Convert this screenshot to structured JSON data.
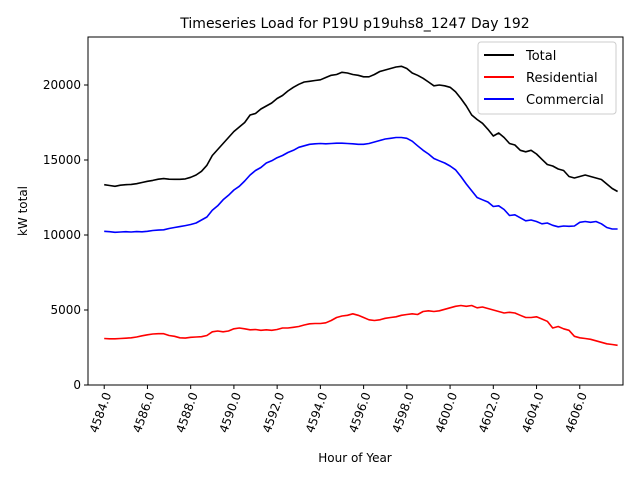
{
  "chart_data": {
    "type": "line",
    "title": "Timeseries Load for P19U p19uhs8_1247  Day 192",
    "xlabel": "Hour of Year",
    "ylabel": "kW total",
    "xlim": [
      4583.25,
      4608.0
    ],
    "ylim": [
      0,
      23200
    ],
    "x_ticks": [
      4584,
      4586,
      4588,
      4590,
      4592,
      4594,
      4596,
      4598,
      4600,
      4602,
      4604,
      4606
    ],
    "x_tick_labels": [
      "4584.0",
      "4586.0",
      "4588.0",
      "4590.0",
      "4592.0",
      "4594.0",
      "4596.0",
      "4598.0",
      "4600.0",
      "4602.0",
      "4604.0",
      "4606.0"
    ],
    "y_ticks": [
      0,
      5000,
      10000,
      15000,
      20000
    ],
    "y_tick_labels": [
      "0",
      "5000",
      "10000",
      "15000",
      "20000"
    ],
    "grid": false,
    "legend_position": "top-right",
    "x": [
      4584.0,
      4584.25,
      4584.5,
      4584.75,
      4585.0,
      4585.25,
      4585.5,
      4585.75,
      4586.0,
      4586.25,
      4586.5,
      4586.75,
      4587.0,
      4587.25,
      4587.5,
      4587.75,
      4588.0,
      4588.25,
      4588.5,
      4588.75,
      4589.0,
      4589.25,
      4589.5,
      4589.75,
      4590.0,
      4590.25,
      4590.5,
      4590.75,
      4591.0,
      4591.25,
      4591.5,
      4591.75,
      4592.0,
      4592.25,
      4592.5,
      4592.75,
      4593.0,
      4593.25,
      4593.5,
      4593.75,
      4594.0,
      4594.25,
      4594.5,
      4594.75,
      4595.0,
      4595.25,
      4595.5,
      4595.75,
      4596.0,
      4596.25,
      4596.5,
      4596.75,
      4597.0,
      4597.25,
      4597.5,
      4597.75,
      4598.0,
      4598.25,
      4598.5,
      4598.75,
      4599.0,
      4599.25,
      4599.5,
      4599.75,
      4600.0,
      4600.25,
      4600.5,
      4600.75,
      4601.0,
      4601.25,
      4601.5,
      4601.75,
      4602.0,
      4602.25,
      4602.5,
      4602.75,
      4603.0,
      4603.25,
      4603.5,
      4603.75,
      4604.0,
      4604.25,
      4604.5,
      4604.75,
      4605.0,
      4605.25,
      4605.5,
      4605.75,
      4606.0,
      4606.25,
      4606.5,
      4606.75,
      4607.0,
      4607.25,
      4607.5,
      4607.75
    ],
    "series": [
      {
        "name": "Total",
        "color": "#000000",
        "values": [
          13350,
          13300,
          13250,
          13320,
          13350,
          13370,
          13420,
          13500,
          13580,
          13640,
          13720,
          13760,
          13720,
          13710,
          13710,
          13740,
          13850,
          14000,
          14250,
          14650,
          15300,
          15700,
          16100,
          16500,
          16900,
          17200,
          17500,
          18000,
          18100,
          18400,
          18600,
          18800,
          19100,
          19300,
          19600,
          19850,
          20050,
          20200,
          20250,
          20300,
          20350,
          20500,
          20650,
          20700,
          20850,
          20800,
          20700,
          20650,
          20550,
          20550,
          20700,
          20900,
          21000,
          21100,
          21200,
          21250,
          21100,
          20800,
          20650,
          20450,
          20200,
          19950,
          20000,
          19950,
          19850,
          19550,
          19100,
          18600,
          18000,
          17700,
          17450,
          17050,
          16600,
          16800,
          16500,
          16100,
          16000,
          15650,
          15550,
          15650,
          15400,
          15050,
          14700,
          14600,
          14400,
          14300,
          13900,
          13800,
          13900,
          14000,
          13900,
          13800,
          13700,
          13400,
          13100,
          12900
        ]
      },
      {
        "name": "Residential",
        "color": "#ff0000",
        "values": [
          3100,
          3080,
          3080,
          3100,
          3120,
          3150,
          3200,
          3280,
          3350,
          3400,
          3420,
          3420,
          3300,
          3250,
          3150,
          3130,
          3180,
          3200,
          3220,
          3300,
          3550,
          3600,
          3550,
          3600,
          3750,
          3800,
          3750,
          3680,
          3700,
          3650,
          3680,
          3650,
          3700,
          3800,
          3800,
          3850,
          3900,
          4000,
          4080,
          4100,
          4100,
          4150,
          4300,
          4500,
          4600,
          4650,
          4750,
          4650,
          4500,
          4350,
          4300,
          4350,
          4450,
          4500,
          4550,
          4650,
          4700,
          4750,
          4700,
          4900,
          4950,
          4900,
          4950,
          5050,
          5150,
          5250,
          5300,
          5250,
          5300,
          5150,
          5200,
          5100,
          5000,
          4900,
          4800,
          4850,
          4800,
          4650,
          4500,
          4500,
          4550,
          4400,
          4250,
          3800,
          3900,
          3750,
          3650,
          3250,
          3150,
          3100,
          3050,
          2950,
          2850,
          2750,
          2700,
          2650
        ]
      },
      {
        "name": "Commercial",
        "color": "#0000ff",
        "values": [
          10250,
          10220,
          10180,
          10200,
          10220,
          10200,
          10230,
          10210,
          10250,
          10300,
          10330,
          10350,
          10430,
          10500,
          10560,
          10630,
          10700,
          10800,
          11000,
          11200,
          11650,
          11950,
          12350,
          12650,
          13000,
          13250,
          13600,
          14000,
          14300,
          14500,
          14800,
          14950,
          15150,
          15300,
          15500,
          15650,
          15850,
          15950,
          16050,
          16080,
          16100,
          16080,
          16100,
          16120,
          16120,
          16100,
          16080,
          16050,
          16050,
          16100,
          16200,
          16300,
          16400,
          16450,
          16500,
          16500,
          16450,
          16250,
          15950,
          15650,
          15400,
          15100,
          14950,
          14800,
          14600,
          14350,
          13900,
          13400,
          12950,
          12500,
          12350,
          12200,
          11900,
          11950,
          11700,
          11300,
          11350,
          11150,
          10950,
          11000,
          10900,
          10750,
          10800,
          10650,
          10550,
          10600,
          10580,
          10600,
          10850,
          10900,
          10850,
          10900,
          10750,
          10500,
          10400,
          10400
        ]
      }
    ]
  }
}
